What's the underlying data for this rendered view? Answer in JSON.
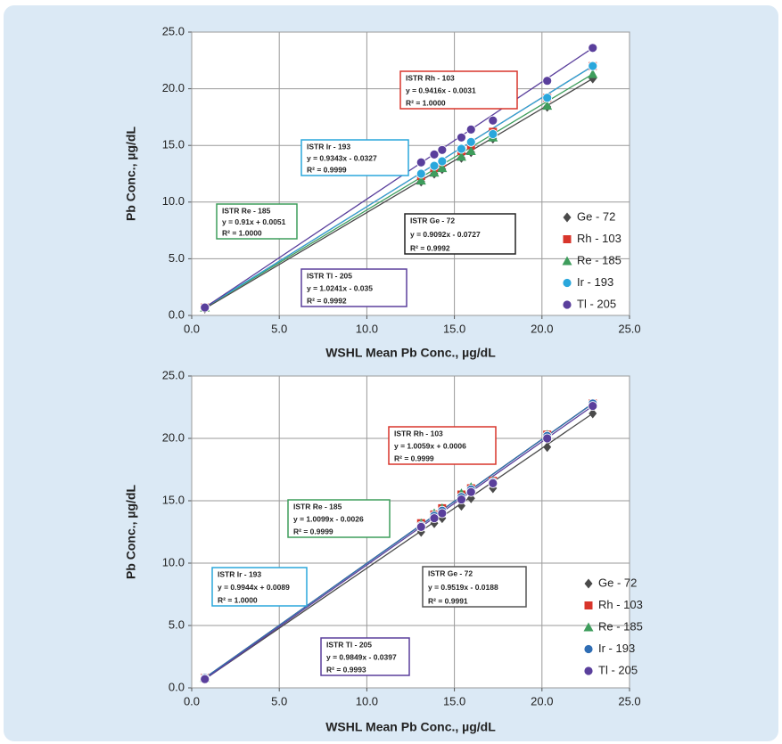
{
  "chart_data": [
    {
      "type": "scatter",
      "ylabel": "Pb Conc., µg/dL",
      "xlabel": "WSHL Mean Pb Conc., µg/dL",
      "x": [
        0.75,
        13.1,
        13.85,
        14.3,
        15.4,
        15.95,
        17.2,
        20.3,
        22.9
      ],
      "series": [
        {
          "name": "Ge - 72",
          "color": "#4a4a4a",
          "marker": "diamond",
          "values": [
            0.6,
            11.8,
            12.5,
            12.9,
            13.9,
            14.4,
            15.6,
            18.4,
            20.9
          ]
        },
        {
          "name": "Rh - 103",
          "color": "#d8352b",
          "marker": "square",
          "values": [
            0.7,
            12.3,
            13.0,
            13.5,
            14.5,
            15.0,
            16.2,
            19.2,
            22.0
          ]
        },
        {
          "name": "Re - 185",
          "color": "#3e9d5c",
          "marker": "triangle",
          "values": [
            0.7,
            11.9,
            12.6,
            13.0,
            14.0,
            14.5,
            15.7,
            18.5,
            21.3
          ]
        },
        {
          "name": "Ir - 193",
          "color": "#2aa7dc",
          "marker": "circle",
          "values": [
            0.7,
            12.5,
            13.2,
            13.6,
            14.7,
            15.3,
            16.0,
            19.2,
            22.0
          ]
        },
        {
          "name": "Tl - 205",
          "color": "#5a3f9c",
          "marker": "circle",
          "values": [
            0.7,
            13.5,
            14.2,
            14.6,
            15.7,
            16.4,
            17.2,
            20.7,
            23.6
          ]
        }
      ],
      "annotations": [
        {
          "color": "#d8352b",
          "lines": [
            "ISTR Rh - 103",
            "y = 0.9416x - 0.0031",
            "R² = 1.0000"
          ]
        },
        {
          "color": "#2aa7dc",
          "lines": [
            "ISTR Ir - 193",
            "y = 0.9343x - 0.0327",
            "R² = 0.9999"
          ]
        },
        {
          "color": "#3e9d5c",
          "lines": [
            "ISTR Re - 185",
            "y = 0.91x + 0.0051",
            "R² = 1.0000"
          ]
        },
        {
          "color": "#222222",
          "lines": [
            "ISTR Ge - 72",
            "y = 0.9092x - 0.0727",
            "R² = 0.9992"
          ]
        },
        {
          "color": "#5a3f9c",
          "lines": [
            "ISTR Tl - 205",
            "y = 1.0241x - 0.035",
            "R² = 0.9992"
          ]
        }
      ],
      "xlim": [
        0,
        25
      ],
      "ylim": [
        0,
        25
      ],
      "xticks": [
        {
          "value": 0,
          "label": "0.0"
        },
        {
          "value": 5,
          "label": "5.0"
        },
        {
          "value": 10,
          "label": "10.0"
        },
        {
          "value": 15,
          "label": "15.0"
        },
        {
          "value": 20,
          "label": "20.0"
        },
        {
          "value": 25,
          "label": "25.0"
        }
      ],
      "yticks": [
        {
          "value": 0,
          "label": "0.0"
        },
        {
          "value": 5,
          "label": "5.0"
        },
        {
          "value": 10,
          "label": "10.0"
        },
        {
          "value": 15,
          "label": "15.0"
        },
        {
          "value": 20,
          "label": "20.0"
        },
        {
          "value": 25,
          "label": "25.0"
        }
      ],
      "grid": true,
      "legend": "lower right"
    },
    {
      "type": "scatter",
      "ylabel": "Pb Conc., µg/dL",
      "xlabel": "WSHL Mean Pb Conc., µg/dL",
      "x": [
        0.75,
        13.1,
        13.85,
        14.3,
        15.4,
        15.95,
        17.2,
        20.3,
        22.9
      ],
      "series": [
        {
          "name": "Ge - 72",
          "color": "#4a4a4a",
          "marker": "diamond",
          "values": [
            0.7,
            12.5,
            13.2,
            13.6,
            14.6,
            15.2,
            16.0,
            19.3,
            22.0
          ]
        },
        {
          "name": "Rh - 103",
          "color": "#d8352b",
          "marker": "square",
          "values": [
            0.8,
            13.2,
            13.9,
            14.4,
            15.5,
            16.0,
            16.6,
            20.3,
            22.8
          ]
        },
        {
          "name": "Re - 185",
          "color": "#3e9d5c",
          "marker": "triangle",
          "values": [
            0.8,
            13.2,
            14.0,
            14.4,
            15.6,
            16.1,
            16.6,
            20.3,
            22.8
          ]
        },
        {
          "name": "Ir - 193",
          "color": "#2f6db4",
          "marker": "circle",
          "values": [
            0.8,
            13.0,
            13.8,
            14.2,
            15.3,
            15.9,
            16.5,
            20.2,
            22.8
          ]
        },
        {
          "name": "Tl - 205",
          "color": "#5a3f9c",
          "marker": "circle",
          "values": [
            0.7,
            12.9,
            13.6,
            14.0,
            15.1,
            15.7,
            16.4,
            20.0,
            22.6
          ]
        }
      ],
      "annotations": [
        {
          "color": "#d8352b",
          "lines": [
            "ISTR Rh - 103",
            "y = 1.0059x + 0.0006",
            "R² = 0.9999"
          ]
        },
        {
          "color": "#3e9d5c",
          "lines": [
            "ISTR Re - 185",
            "y = 1.0099x - 0.0026",
            "R² = 0.9999"
          ]
        },
        {
          "color": "#2aa7dc",
          "lines": [
            "ISTR Ir - 193",
            "y = 0.9944x + 0.0089",
            "R² = 1.0000"
          ]
        },
        {
          "color": "#555555",
          "lines": [
            "ISTR Ge - 72",
            "y = 0.9519x - 0.0188",
            "R² = 0.9991"
          ]
        },
        {
          "color": "#5a3f9c",
          "lines": [
            "ISTR Tl - 205",
            "y = 0.9849x - 0.0397",
            "R² = 0.9993"
          ]
        }
      ],
      "xlim": [
        0,
        25
      ],
      "ylim": [
        0,
        25
      ],
      "xticks": [
        {
          "value": 0,
          "label": "0.0"
        },
        {
          "value": 5,
          "label": "5.0"
        },
        {
          "value": 10,
          "label": "10.0"
        },
        {
          "value": 15,
          "label": "15.0"
        },
        {
          "value": 20,
          "label": "20.0"
        },
        {
          "value": 25,
          "label": "25.0"
        }
      ],
      "yticks": [
        {
          "value": 0,
          "label": "0.0"
        },
        {
          "value": 5,
          "label": "5.0"
        },
        {
          "value": 10,
          "label": "10.0"
        },
        {
          "value": 15,
          "label": "15.0"
        },
        {
          "value": 20,
          "label": "20.0"
        },
        {
          "value": 25,
          "label": "25.0"
        }
      ],
      "grid": true,
      "legend": "lower right"
    }
  ]
}
